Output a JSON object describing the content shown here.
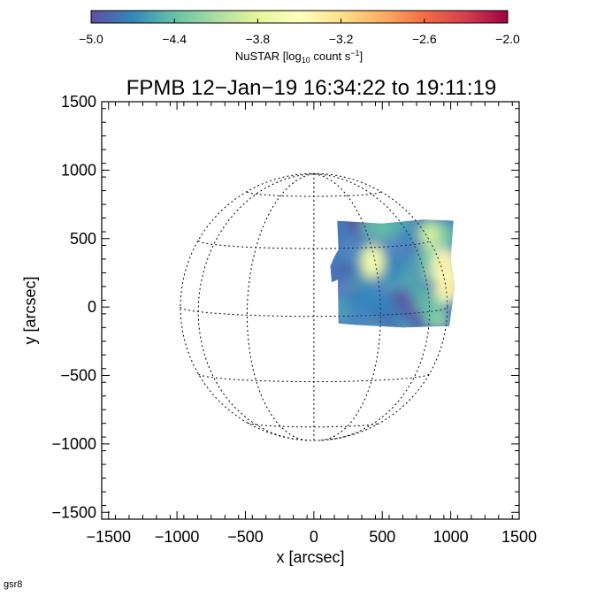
{
  "chart_data": {
    "type": "heatmap",
    "title": "FPMB 12−Jan−19 16:34:22 to 19:11:19",
    "xlabel": "x [arcsec]",
    "ylabel": "y [arcsec]",
    "xlim": [
      -1550,
      1500
    ],
    "ylim": [
      -1550,
      1500
    ],
    "x_ticks": [
      -1500,
      -1000,
      -500,
      0,
      500,
      1000,
      1500
    ],
    "x_tick_labels": [
      "−1500",
      "−1000",
      "−500",
      "0",
      "500",
      "1000",
      "1500"
    ],
    "y_ticks": [
      -1500,
      -1000,
      -500,
      0,
      500,
      1000,
      1500
    ],
    "y_tick_labels": [
      "−1500",
      "−1000",
      "−500",
      "0",
      "500",
      "1000",
      "1500"
    ],
    "colorbar": {
      "label_main": "NuSTAR [log",
      "label_sub": "10",
      "label_rest": " count s",
      "label_sup": "−1",
      "label_end": "]",
      "range": [
        -5.0,
        -2.0
      ],
      "ticks": [
        -5.0,
        -4.4,
        -3.8,
        -3.2,
        -2.6,
        -2.0
      ],
      "tick_labels": [
        "−5.0",
        "−4.4",
        "−3.8",
        "−3.2",
        "−2.6",
        "−2.0"
      ],
      "colormap": [
        "#5e4fa2",
        "#3288bd",
        "#66c2a5",
        "#abdda4",
        "#e6f598",
        "#ffffbf",
        "#fee08b",
        "#fdae61",
        "#f46d43",
        "#d53e4f",
        "#9e0142"
      ]
    },
    "solar_disk": {
      "radius": 975,
      "grid": "dotted"
    },
    "image_region": {
      "x_range": [
        150,
        1050
      ],
      "y_range": [
        -150,
        650
      ]
    },
    "bright_sources": [
      {
        "x": 950,
        "y": 300,
        "value": -3.4
      },
      {
        "x": 980,
        "y": 150,
        "value": -3.6
      },
      {
        "x": 430,
        "y": 330,
        "value": -3.9
      },
      {
        "x": 850,
        "y": 520,
        "value": -4.0
      }
    ],
    "grid": false
  },
  "footer_label": "gsr8"
}
